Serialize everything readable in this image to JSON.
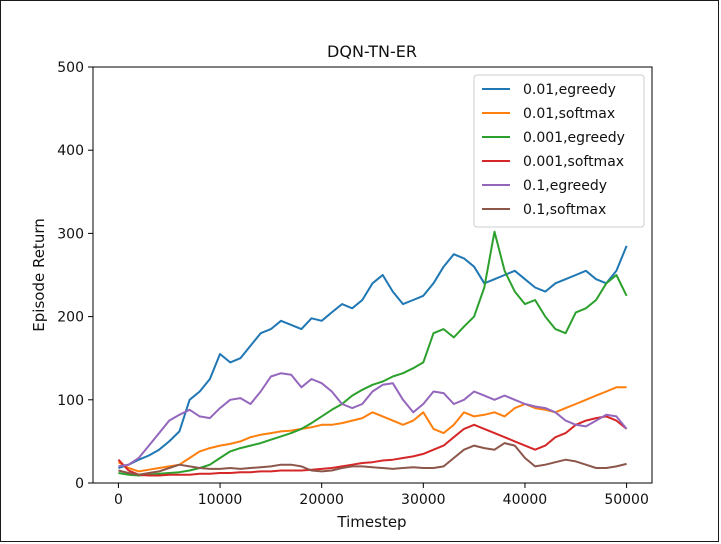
{
  "chart_data": {
    "type": "line",
    "title": "DQN-TN-ER",
    "xlabel": "Timestep",
    "ylabel": "Episode Return",
    "xlim": [
      -2500,
      52500
    ],
    "ylim": [
      0,
      500
    ],
    "xticks": [
      0,
      10000,
      20000,
      30000,
      40000,
      50000
    ],
    "yticks": [
      0,
      100,
      200,
      300,
      400,
      500
    ],
    "legend_position": "top-right",
    "grid": false,
    "series": [
      {
        "name": "0.01,egreedy",
        "color": "#1f77b4",
        "x": [
          0,
          1000,
          2000,
          3000,
          4000,
          5000,
          6000,
          7000,
          8000,
          9000,
          10000,
          11000,
          12000,
          13000,
          14000,
          15000,
          16000,
          17000,
          18000,
          19000,
          20000,
          21000,
          22000,
          23000,
          24000,
          25000,
          26000,
          27000,
          28000,
          29000,
          30000,
          31000,
          32000,
          33000,
          34000,
          35000,
          36000,
          37000,
          38000,
          39000,
          40000,
          41000,
          42000,
          43000,
          44000,
          45000,
          46000,
          47000,
          48000,
          49000,
          50000
        ],
        "values": [
          18,
          22,
          28,
          33,
          40,
          50,
          62,
          100,
          110,
          125,
          155,
          145,
          150,
          165,
          180,
          185,
          195,
          190,
          185,
          198,
          195,
          205,
          215,
          210,
          220,
          240,
          250,
          230,
          215,
          220,
          225,
          240,
          260,
          275,
          270,
          260,
          240,
          245,
          250,
          255,
          245,
          235,
          230,
          240,
          245,
          250,
          255,
          245,
          240,
          255,
          285
        ]
      },
      {
        "name": "0.01,softmax",
        "color": "#ff7f0e",
        "x": [
          0,
          1000,
          2000,
          3000,
          4000,
          5000,
          6000,
          7000,
          8000,
          9000,
          10000,
          11000,
          12000,
          13000,
          14000,
          15000,
          16000,
          17000,
          18000,
          19000,
          20000,
          21000,
          22000,
          23000,
          24000,
          25000,
          26000,
          27000,
          28000,
          29000,
          30000,
          31000,
          32000,
          33000,
          34000,
          35000,
          36000,
          37000,
          38000,
          39000,
          40000,
          41000,
          42000,
          43000,
          44000,
          45000,
          46000,
          47000,
          48000,
          49000,
          50000
        ],
        "values": [
          25,
          18,
          14,
          16,
          18,
          20,
          22,
          30,
          38,
          42,
          45,
          47,
          50,
          55,
          58,
          60,
          62,
          63,
          65,
          67,
          70,
          70,
          72,
          75,
          78,
          85,
          80,
          75,
          70,
          75,
          85,
          65,
          60,
          70,
          85,
          80,
          82,
          85,
          80,
          90,
          95,
          90,
          88,
          85,
          90,
          95,
          100,
          105,
          110,
          115,
          115
        ]
      },
      {
        "name": "0.001,egreedy",
        "color": "#2ca02c",
        "x": [
          0,
          1000,
          2000,
          3000,
          4000,
          5000,
          6000,
          7000,
          8000,
          9000,
          10000,
          11000,
          12000,
          13000,
          14000,
          15000,
          16000,
          17000,
          18000,
          19000,
          20000,
          21000,
          22000,
          23000,
          24000,
          25000,
          26000,
          27000,
          28000,
          29000,
          30000,
          31000,
          32000,
          33000,
          34000,
          35000,
          36000,
          37000,
          38000,
          39000,
          40000,
          41000,
          42000,
          43000,
          44000,
          45000,
          46000,
          47000,
          48000,
          49000,
          50000
        ],
        "values": [
          12,
          10,
          9,
          10,
          11,
          12,
          13,
          15,
          18,
          22,
          30,
          38,
          42,
          45,
          48,
          52,
          56,
          60,
          65,
          72,
          80,
          88,
          95,
          105,
          112,
          118,
          122,
          128,
          132,
          138,
          145,
          180,
          185,
          175,
          188,
          200,
          235,
          302,
          255,
          230,
          215,
          220,
          200,
          185,
          180,
          205,
          210,
          220,
          240,
          250,
          225
        ]
      },
      {
        "name": "0.001,softmax",
        "color": "#d62728",
        "x": [
          0,
          1000,
          2000,
          3000,
          4000,
          5000,
          6000,
          7000,
          8000,
          9000,
          10000,
          11000,
          12000,
          13000,
          14000,
          15000,
          16000,
          17000,
          18000,
          19000,
          20000,
          21000,
          22000,
          23000,
          24000,
          25000,
          26000,
          27000,
          28000,
          29000,
          30000,
          31000,
          32000,
          33000,
          34000,
          35000,
          36000,
          37000,
          38000,
          39000,
          40000,
          41000,
          42000,
          43000,
          44000,
          45000,
          46000,
          47000,
          48000,
          49000,
          50000
        ],
        "values": [
          28,
          15,
          10,
          9,
          9,
          10,
          10,
          10,
          11,
          11,
          12,
          12,
          13,
          13,
          14,
          14,
          15,
          15,
          15,
          16,
          17,
          18,
          20,
          22,
          24,
          25,
          27,
          28,
          30,
          32,
          35,
          40,
          45,
          55,
          65,
          70,
          65,
          60,
          55,
          50,
          45,
          40,
          45,
          55,
          60,
          70,
          75,
          78,
          80,
          75,
          65
        ]
      },
      {
        "name": "0.1,egreedy",
        "color": "#9467bd",
        "x": [
          0,
          1000,
          2000,
          3000,
          4000,
          5000,
          6000,
          7000,
          8000,
          9000,
          10000,
          11000,
          12000,
          13000,
          14000,
          15000,
          16000,
          17000,
          18000,
          19000,
          20000,
          21000,
          22000,
          23000,
          24000,
          25000,
          26000,
          27000,
          28000,
          29000,
          30000,
          31000,
          32000,
          33000,
          34000,
          35000,
          36000,
          37000,
          38000,
          39000,
          40000,
          41000,
          42000,
          43000,
          44000,
          45000,
          46000,
          47000,
          48000,
          49000,
          50000
        ],
        "values": [
          20,
          22,
          30,
          45,
          60,
          75,
          82,
          88,
          80,
          78,
          90,
          100,
          102,
          95,
          110,
          128,
          132,
          130,
          115,
          125,
          120,
          110,
          95,
          90,
          95,
          110,
          118,
          120,
          100,
          85,
          95,
          110,
          108,
          95,
          100,
          110,
          105,
          100,
          105,
          100,
          95,
          92,
          90,
          85,
          75,
          70,
          68,
          75,
          82,
          80,
          65
        ]
      },
      {
        "name": "0.1,softmax",
        "color": "#8c564b",
        "x": [
          0,
          1000,
          2000,
          3000,
          4000,
          5000,
          6000,
          7000,
          8000,
          9000,
          10000,
          11000,
          12000,
          13000,
          14000,
          15000,
          16000,
          17000,
          18000,
          19000,
          20000,
          21000,
          22000,
          23000,
          24000,
          25000,
          26000,
          27000,
          28000,
          29000,
          30000,
          31000,
          32000,
          33000,
          34000,
          35000,
          36000,
          37000,
          38000,
          39000,
          40000,
          41000,
          42000,
          43000,
          44000,
          45000,
          46000,
          47000,
          48000,
          49000,
          50000
        ],
        "values": [
          15,
          12,
          10,
          12,
          14,
          18,
          22,
          20,
          18,
          17,
          17,
          18,
          17,
          18,
          19,
          20,
          22,
          22,
          20,
          15,
          14,
          15,
          18,
          20,
          20,
          19,
          18,
          17,
          18,
          19,
          18,
          18,
          20,
          30,
          40,
          45,
          42,
          40,
          48,
          45,
          30,
          20,
          22,
          25,
          28,
          26,
          22,
          18,
          18,
          20,
          23
        ]
      }
    ]
  }
}
